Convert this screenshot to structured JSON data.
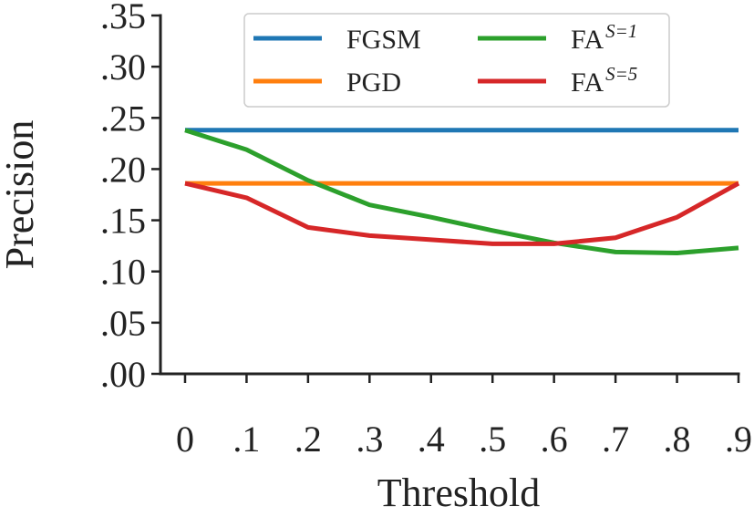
{
  "chart_data": {
    "type": "line",
    "xlabel": "Threshold",
    "ylabel": "Precision",
    "x": [
      0,
      0.1,
      0.2,
      0.3,
      0.4,
      0.5,
      0.6,
      0.7,
      0.8,
      0.9
    ],
    "x_tick_labels": [
      "0",
      ".1",
      ".2",
      ".3",
      ".4",
      ".5",
      ".6",
      ".7",
      ".8",
      ".9"
    ],
    "y_ticks": [
      0.0,
      0.05,
      0.1,
      0.15,
      0.2,
      0.25,
      0.3,
      0.35
    ],
    "y_tick_labels": [
      ".00",
      ".05",
      ".10",
      ".15",
      ".20",
      ".25",
      ".30",
      ".35"
    ],
    "xlim": [
      -0.04,
      0.9
    ],
    "ylim": [
      0.0,
      0.35
    ],
    "grid": false,
    "legend_position": "top-center",
    "series": [
      {
        "name": "FGSM",
        "color": "#1f77b4",
        "values": [
          0.238,
          0.238,
          0.238,
          0.238,
          0.238,
          0.238,
          0.238,
          0.238,
          0.238,
          0.238
        ]
      },
      {
        "name": "PGD",
        "color": "#ff7f0e",
        "values": [
          0.186,
          0.186,
          0.186,
          0.186,
          0.186,
          0.186,
          0.186,
          0.186,
          0.186,
          0.186
        ]
      },
      {
        "name": "FA",
        "name_superscript": "S=1",
        "color": "#2ca02c",
        "values": [
          0.238,
          0.219,
          0.189,
          0.165,
          0.153,
          0.14,
          0.128,
          0.119,
          0.118,
          0.123
        ]
      },
      {
        "name": "FA",
        "name_superscript": "S=5",
        "color": "#d62728",
        "values": [
          0.186,
          0.172,
          0.143,
          0.135,
          0.131,
          0.127,
          0.127,
          0.133,
          0.153,
          0.186
        ]
      }
    ]
  }
}
